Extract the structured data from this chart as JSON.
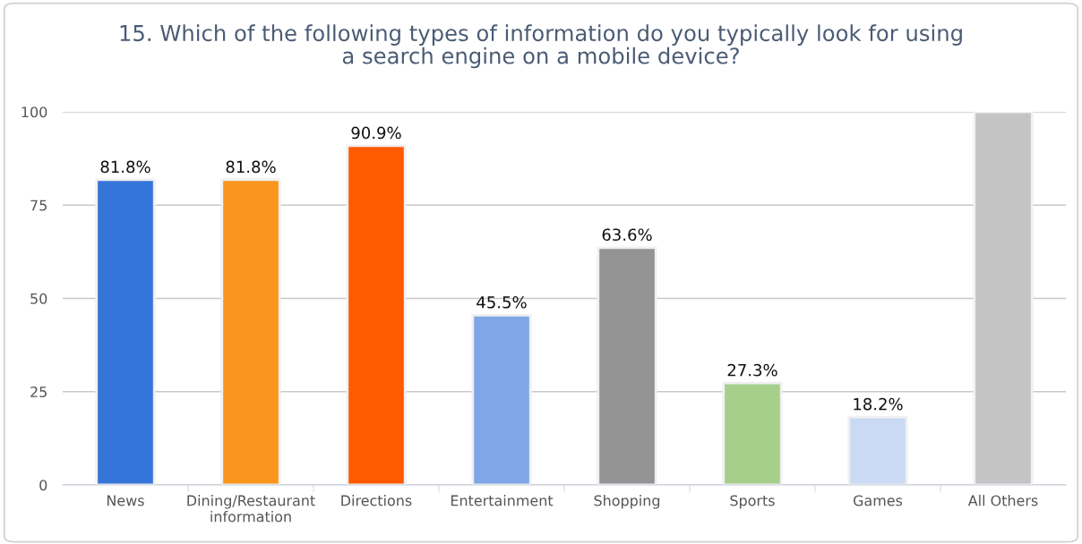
{
  "chart_data": {
    "type": "bar",
    "title": "15. Which of the following types of information do you typically look for using\na search engine on a mobile device?",
    "categories": [
      "News",
      "Dining/Restaurant\ninformation",
      "Directions",
      "Entertainment",
      "Shopping",
      "Sports",
      "Games",
      "All Others"
    ],
    "values": [
      81.8,
      81.8,
      90.9,
      45.5,
      63.6,
      27.3,
      18.2,
      100
    ],
    "value_labels": [
      "81.8%",
      "81.8%",
      "90.9%",
      "45.5%",
      "63.6%",
      "27.3%",
      "18.2%",
      null
    ],
    "colors": [
      "#3574d9",
      "#fa961e",
      "#ff5a00",
      "#7fa6e6",
      "#949494",
      "#a6cf8c",
      "#cadaf5",
      "#c4c4c4"
    ],
    "ylim": [
      0,
      100
    ],
    "yticks": [
      0,
      25,
      50,
      75,
      100
    ],
    "grid": "y",
    "legend": false
  }
}
